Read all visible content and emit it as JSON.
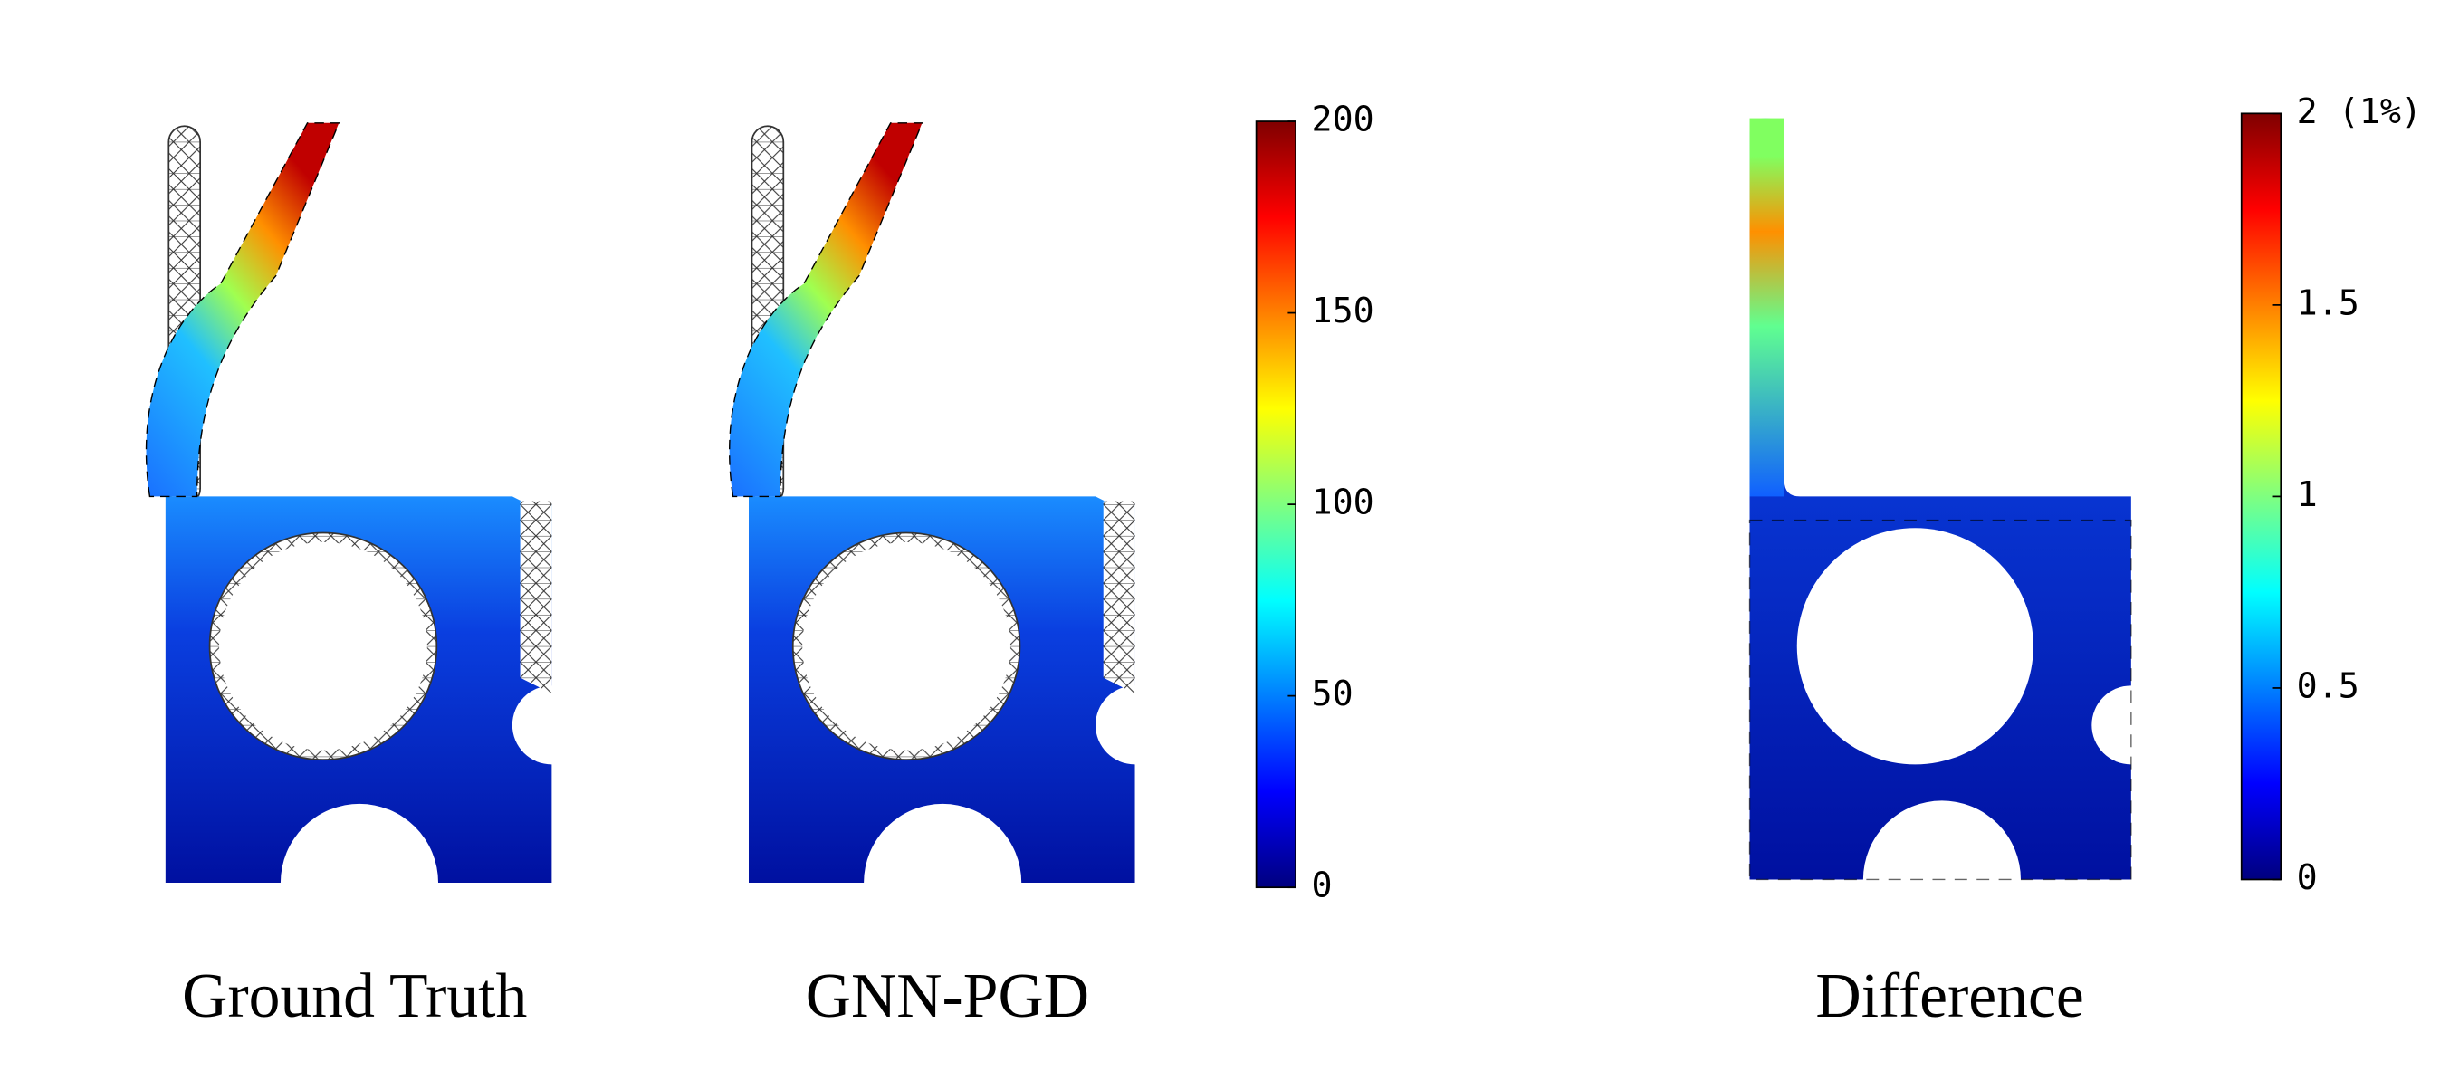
{
  "panels": [
    {
      "label": "Ground Truth"
    },
    {
      "label": "GNN-PGD"
    },
    {
      "label": "Difference"
    }
  ],
  "colorbars": [
    {
      "lim": [
        0,
        200
      ],
      "ticks": [
        0,
        50,
        100,
        150,
        200
      ]
    },
    {
      "lim": [
        0,
        2
      ],
      "ticks": [
        0,
        0.5,
        1,
        1.5,
        {
          "value": 2,
          "label": "2 (1%)"
        }
      ]
    }
  ]
}
